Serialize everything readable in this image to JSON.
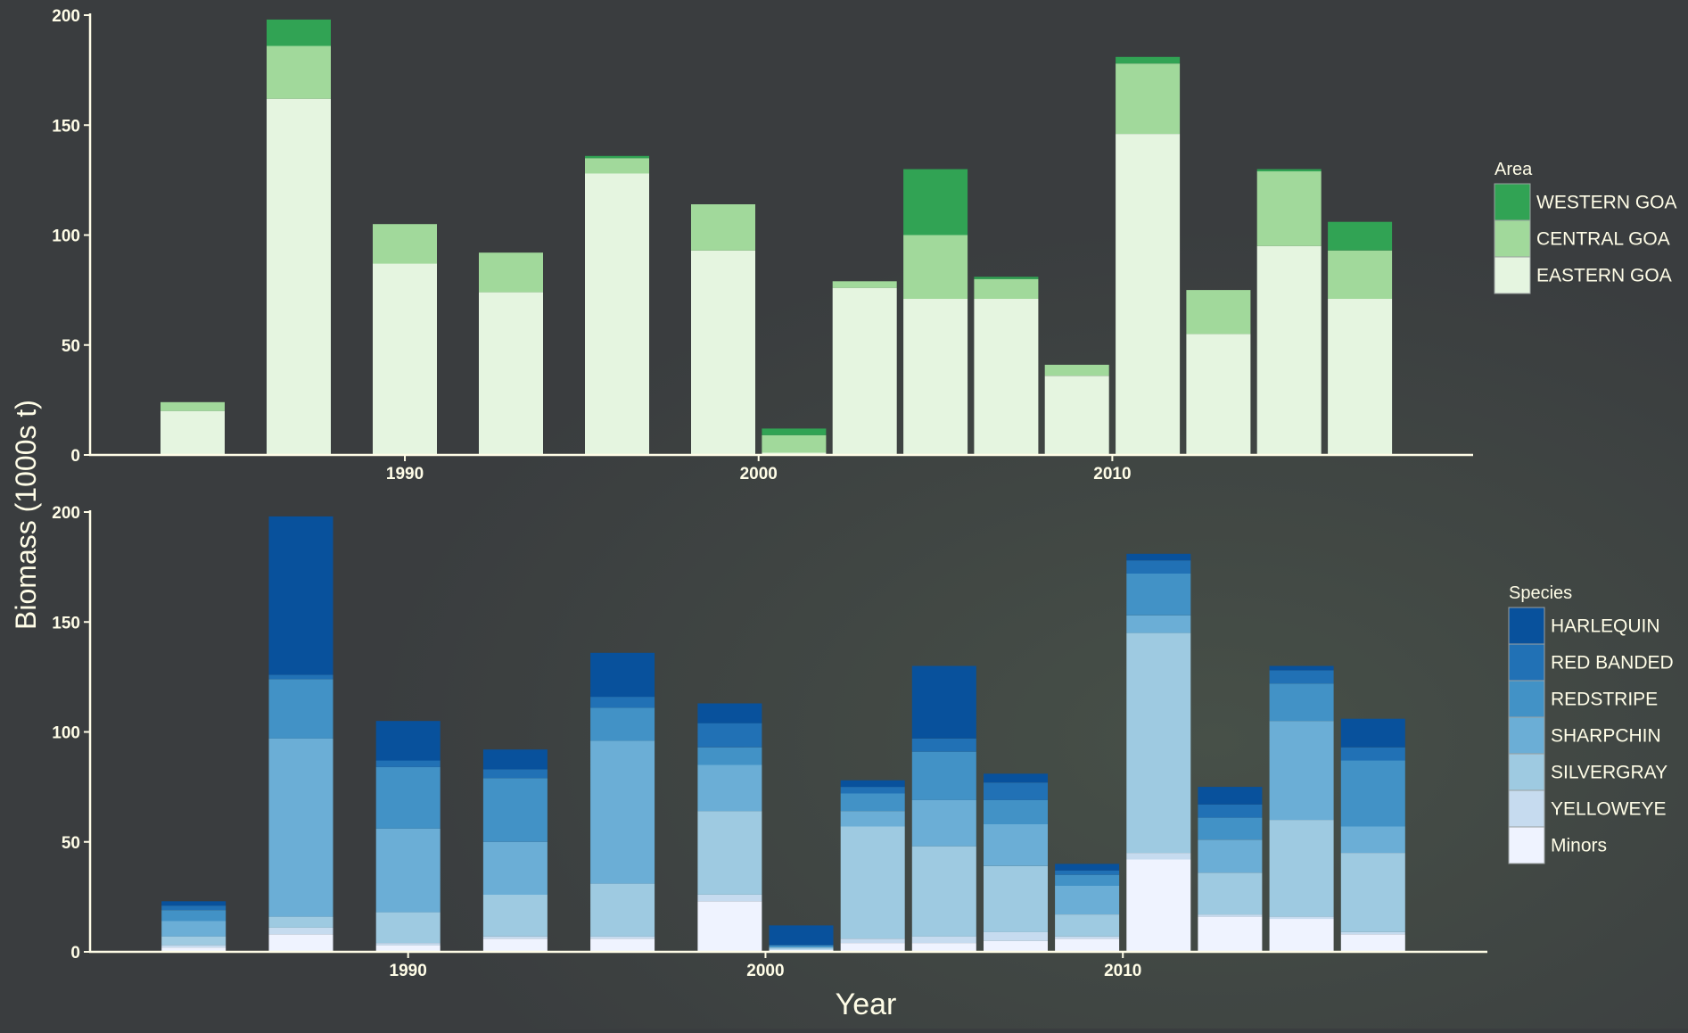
{
  "ylabel": "Biomass (1000s t)",
  "xlabel": "Year",
  "chart_data": [
    {
      "type": "bar",
      "stacked": true,
      "title": "",
      "xlabel": "Year",
      "ylabel": "Biomass (1000s t)",
      "xlim": [
        1981.1,
        2020.2
      ],
      "ylim": [
        0,
        200
      ],
      "x_ticks": [
        1990,
        2000,
        2010
      ],
      "y_ticks": [
        0,
        50,
        100,
        150,
        200
      ],
      "grid": false,
      "legend_title": "Area",
      "legend_position": "right",
      "categories": [
        1984,
        1987,
        1990,
        1993,
        1996,
        1999,
        2001,
        2003,
        2005,
        2007,
        2009,
        2011,
        2013,
        2015,
        2017
      ],
      "series": [
        {
          "name": "EASTERN GOA",
          "color": "#e5f5e0",
          "values": [
            20,
            162,
            87,
            74,
            128,
            93,
            1,
            76,
            71,
            71,
            36,
            146,
            55,
            95,
            71
          ]
        },
        {
          "name": "CENTRAL GOA",
          "color": "#a1d99b",
          "values": [
            4,
            24,
            18,
            18,
            7,
            21,
            8,
            3,
            29,
            9,
            5,
            32,
            20,
            34,
            22
          ]
        },
        {
          "name": "WESTERN GOA",
          "color": "#31a354",
          "values": [
            0,
            12,
            0,
            0,
            1,
            0,
            3,
            0,
            30,
            1,
            0,
            3,
            0,
            1,
            13
          ]
        }
      ]
    },
    {
      "type": "bar",
      "stacked": true,
      "title": "",
      "xlabel": "Year",
      "ylabel": "Biomass (1000s t)",
      "xlim": [
        1981.1,
        2020.2
      ],
      "ylim": [
        0,
        200
      ],
      "x_ticks": [
        1990,
        2000,
        2010
      ],
      "y_ticks": [
        0,
        50,
        100,
        150,
        200
      ],
      "grid": false,
      "legend_title": "Species",
      "legend_position": "right",
      "categories": [
        1984,
        1987,
        1990,
        1993,
        1996,
        1999,
        2001,
        2003,
        2005,
        2007,
        2009,
        2011,
        2013,
        2015,
        2017
      ],
      "series": [
        {
          "name": "Minors",
          "color": "#eff3ff",
          "values": [
            2,
            8,
            3,
            6,
            6,
            23,
            1,
            4,
            4,
            5,
            6,
            42,
            16,
            15,
            8
          ]
        },
        {
          "name": "YELLOWEYE",
          "color": "#c6dbef",
          "values": [
            1,
            3,
            1,
            1,
            1,
            3,
            0,
            2,
            3,
            4,
            1,
            3,
            1,
            1,
            1
          ]
        },
        {
          "name": "SILVERGRAY",
          "color": "#9ecae1",
          "values": [
            4,
            5,
            14,
            19,
            24,
            38,
            1,
            51,
            41,
            30,
            10,
            100,
            19,
            44,
            36
          ]
        },
        {
          "name": "SHARPCHIN",
          "color": "#6baed6",
          "values": [
            7,
            81,
            38,
            24,
            65,
            21,
            0,
            7,
            21,
            19,
            13,
            8,
            15,
            45,
            12
          ]
        },
        {
          "name": "REDSTRIPE",
          "color": "#4292c6",
          "values": [
            5,
            27,
            28,
            29,
            15,
            8,
            1,
            8,
            22,
            11,
            5,
            19,
            10,
            17,
            30
          ]
        },
        {
          "name": "RED BANDED",
          "color": "#2171b5",
          "values": [
            2,
            2,
            3,
            4,
            5,
            11,
            0,
            3,
            6,
            8,
            2,
            6,
            6,
            6,
            6
          ]
        },
        {
          "name": "HARLEQUIN",
          "color": "#08519c",
          "values": [
            2,
            72,
            18,
            9,
            20,
            9,
            9,
            3,
            33,
            4,
            3,
            3,
            8,
            2,
            13
          ]
        }
      ]
    }
  ]
}
